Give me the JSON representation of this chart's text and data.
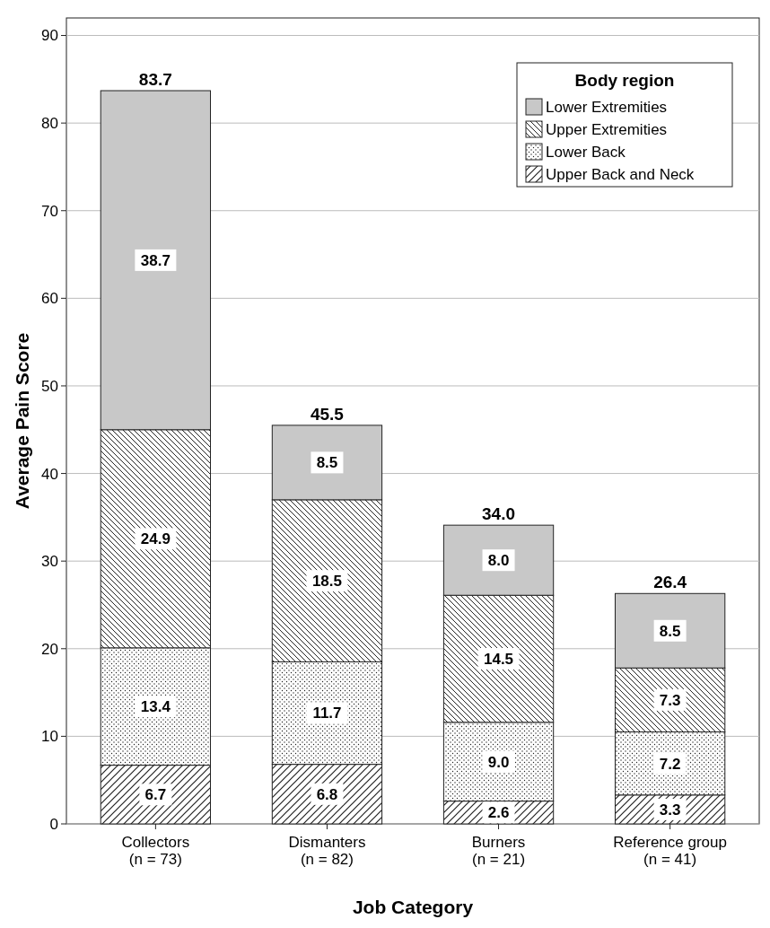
{
  "chart_data": {
    "type": "bar",
    "stacked": true,
    "xlabel": "Job Category",
    "ylabel": "Average Pain Score",
    "legend_title": "Body region",
    "legend": "top right",
    "grid": "y",
    "categories": [
      "Collectors\n(n = 73)",
      "Dismanters\n(n = 82)",
      "Burners\n(n = 21)",
      "Reference group\n(n = 41)"
    ],
    "ylim": [
      0,
      92
    ],
    "yticks": [
      0,
      10,
      20,
      30,
      40,
      50,
      60,
      70,
      80,
      90
    ],
    "series": [
      {
        "name": "Upper Back and Neck",
        "color": "#222222",
        "values": [
          6.7,
          6.8,
          2.6,
          3.3
        ],
        "value_labels": [
          "6.7",
          "6.8",
          "2.6",
          "3.3"
        ]
      },
      {
        "name": "Lower Back",
        "color": "#222222",
        "values": [
          13.4,
          11.7,
          9.0,
          7.2
        ],
        "value_labels": [
          "13.4",
          "11.7",
          "9.0",
          "7.2"
        ]
      },
      {
        "name": "Upper Extremities",
        "color": "#222222",
        "values": [
          24.9,
          18.5,
          14.5,
          7.3
        ],
        "value_labels": [
          "24.9",
          "18.5",
          "14.5",
          "7.3"
        ]
      },
      {
        "name": "Lower Extremities",
        "color": "#c8c8c8",
        "values": [
          38.7,
          8.5,
          8.0,
          8.5
        ],
        "value_labels": [
          "38.7",
          "8.5",
          "8.0",
          "8.5"
        ]
      }
    ],
    "totals": [
      "83.7",
      "45.5",
      "34.0",
      "26.4"
    ]
  }
}
